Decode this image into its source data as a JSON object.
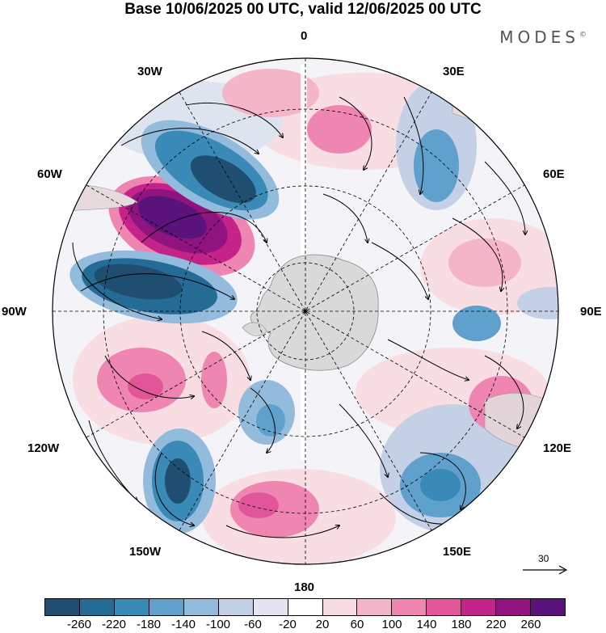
{
  "title": "Base 10/06/2025 00 UTC, valid 12/06/2025 00 UTC",
  "brand": {
    "name": "MODES",
    "mark": "©"
  },
  "map": {
    "projection": "south polar stereographic",
    "longitude_labels": [
      "0",
      "30E",
      "60E",
      "90E",
      "120E",
      "150E",
      "180",
      "150W",
      "120W",
      "90W",
      "60W",
      "30W"
    ],
    "field": "shaded anomaly with wind streamlines",
    "colors": {
      "negative_strong": "#0f4c6e",
      "positive_strong": "#5a137a",
      "land": "#d9d9d9"
    }
  },
  "vector_reference": {
    "value": "30"
  },
  "colorbar": {
    "colors": [
      "#1f4e70",
      "#246b96",
      "#3a8ab8",
      "#5fa1cc",
      "#93bcdc",
      "#c3d0e6",
      "#e4e5f1",
      "#ffffff",
      "#f8dde3",
      "#f4b5c8",
      "#ee86b1",
      "#e25599",
      "#c42389",
      "#8f1480",
      "#5a137a"
    ],
    "ticks": [
      "-260",
      "-220",
      "-180",
      "-140",
      "-100",
      "-60",
      "-20",
      "20",
      "60",
      "100",
      "140",
      "180",
      "220",
      "260"
    ]
  }
}
